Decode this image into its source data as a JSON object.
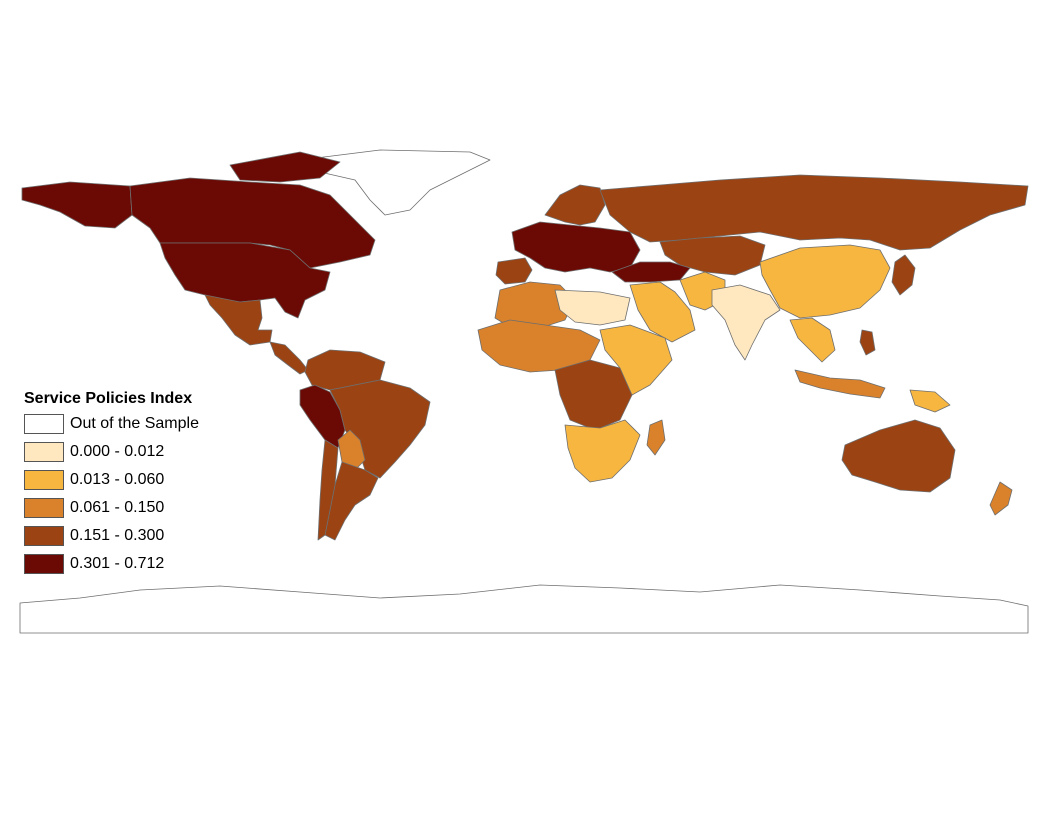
{
  "legend": {
    "title": "Service Policies Index",
    "items": [
      {
        "label": "Out of the Sample",
        "color": "#ffffff"
      },
      {
        "label": "0.000 - 0.012",
        "color": "#ffe8bf"
      },
      {
        "label": "0.013 - 0.060",
        "color": "#f7b640"
      },
      {
        "label": "0.061 - 0.150",
        "color": "#d9822b"
      },
      {
        "label": "0.151 - 0.300",
        "color": "#9c4313"
      },
      {
        "label": "0.301 - 0.712",
        "color": "#6b0a04"
      }
    ]
  },
  "regions": [
    {
      "name": "canada",
      "class": 5
    },
    {
      "name": "united-states",
      "class": 5
    },
    {
      "name": "alaska",
      "class": 5
    },
    {
      "name": "greenland",
      "class": 0
    },
    {
      "name": "mexico",
      "class": 4
    },
    {
      "name": "central-america",
      "class": 4
    },
    {
      "name": "colombia-venezuela",
      "class": 4
    },
    {
      "name": "peru",
      "class": 5
    },
    {
      "name": "brazil",
      "class": 4
    },
    {
      "name": "bolivia",
      "class": 3
    },
    {
      "name": "argentina",
      "class": 4
    },
    {
      "name": "chile",
      "class": 4
    },
    {
      "name": "western-europe",
      "class": 5
    },
    {
      "name": "iberia",
      "class": 4
    },
    {
      "name": "scandinavia",
      "class": 4
    },
    {
      "name": "russia",
      "class": 4
    },
    {
      "name": "kazakhstan",
      "class": 4
    },
    {
      "name": "caucasus",
      "class": 5
    },
    {
      "name": "middle-east",
      "class": 2
    },
    {
      "name": "iran",
      "class": 2
    },
    {
      "name": "india",
      "class": 1
    },
    {
      "name": "china",
      "class": 2
    },
    {
      "name": "southeast-asia",
      "class": 2
    },
    {
      "name": "japan",
      "class": 4
    },
    {
      "name": "indonesia",
      "class": 3
    },
    {
      "name": "papua",
      "class": 2
    },
    {
      "name": "australia",
      "class": 4
    },
    {
      "name": "new-zealand",
      "class": 3
    },
    {
      "name": "north-africa",
      "class": 3
    },
    {
      "name": "libya-egypt",
      "class": 1
    },
    {
      "name": "west-africa",
      "class": 3
    },
    {
      "name": "central-africa",
      "class": 4
    },
    {
      "name": "east-africa",
      "class": 2
    },
    {
      "name": "southern-africa",
      "class": 2
    },
    {
      "name": "madagascar",
      "class": 3
    },
    {
      "name": "antarctica",
      "class": 0
    }
  ]
}
